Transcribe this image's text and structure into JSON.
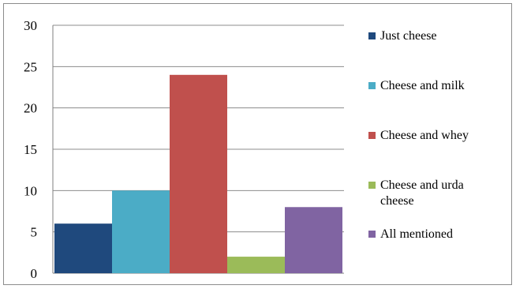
{
  "chart_data": {
    "type": "bar",
    "ylim": [
      0,
      30
    ],
    "yticks": [
      0,
      5,
      10,
      15,
      20,
      25,
      30
    ],
    "grid": true,
    "legend_position": "right",
    "series": [
      {
        "name": "Just cheese",
        "value": 6,
        "color": "#1f497d"
      },
      {
        "name": "Cheese and milk",
        "value": 10,
        "color": "#4bacc6"
      },
      {
        "name": "Cheese and whey",
        "value": 24,
        "color": "#c0504d"
      },
      {
        "name": "Cheese and urda cheese",
        "value": 2,
        "color": "#9bbb59"
      },
      {
        "name": "All mentioned",
        "value": 8,
        "color": "#8064a2"
      }
    ]
  },
  "legend": {
    "items": [
      {
        "label": "Just cheese"
      },
      {
        "label": "Cheese and milk"
      },
      {
        "label": "Cheese and whey"
      },
      {
        "label": "Cheese and urda cheese"
      },
      {
        "label": "All mentioned"
      }
    ]
  }
}
